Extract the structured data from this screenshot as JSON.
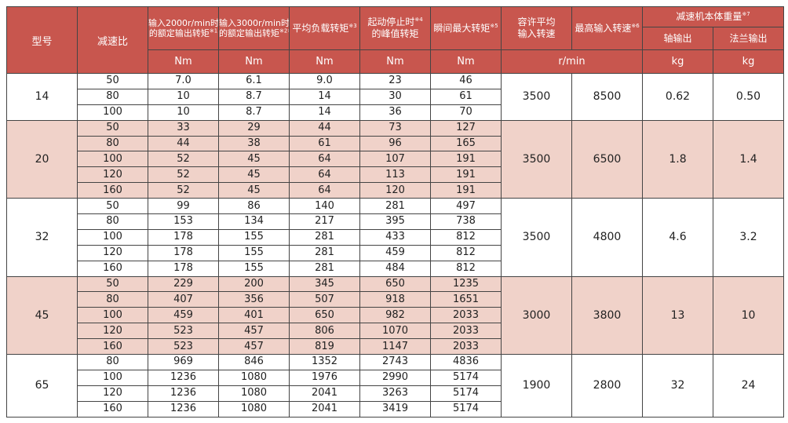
{
  "headers": {
    "model": "型号",
    "ratio": "减速比",
    "rated_2000_line1": "输入2000r/min时",
    "rated_2000_line2": "的额定输出转矩",
    "rated_2000_note": "※1",
    "rated_3000_line1": "输入3000r/min时",
    "rated_3000_line2": "的额定输出转矩",
    "rated_3000_note": "※2※6",
    "avg_load": "平均负载转矩",
    "avg_load_note": "※3",
    "peak_start_line1": "起动停止时",
    "peak_start_line2": "的峰值转矩",
    "peak_start_note": "※4",
    "momentary": "瞬间最大转矩",
    "momentary_note": "※5",
    "allow_speed_line1": "容许平均",
    "allow_speed_line2": "输入转速",
    "max_speed": "最高输入转速",
    "max_speed_note": "※6",
    "weight": "减速机本体重量",
    "weight_note": "※7",
    "shaft_out": "轴输出",
    "flange_out": "法兰输出"
  },
  "units": {
    "rated_2000": "Nm",
    "rated_3000": "Nm",
    "avg_load": "Nm",
    "peak_start": "Nm",
    "momentary": "Nm",
    "speed": "r/min",
    "weight_shaft": "kg",
    "weight_flange": "kg"
  },
  "groups": [
    {
      "model": "14",
      "allow_speed": "3500",
      "max_speed": "8500",
      "weight_shaft": "0.62",
      "weight_flange": "0.50",
      "rows": [
        {
          "ratio": "50",
          "r2000": "7.0",
          "r3000": "6.1",
          "avg": "9.0",
          "peak": "23",
          "moment": "46"
        },
        {
          "ratio": "80",
          "r2000": "10",
          "r3000": "8.7",
          "avg": "14",
          "peak": "30",
          "moment": "61"
        },
        {
          "ratio": "100",
          "r2000": "10",
          "r3000": "8.7",
          "avg": "14",
          "peak": "36",
          "moment": "70"
        }
      ]
    },
    {
      "model": "20",
      "allow_speed": "3500",
      "max_speed": "6500",
      "weight_shaft": "1.8",
      "weight_flange": "1.4",
      "rows": [
        {
          "ratio": "50",
          "r2000": "33",
          "r3000": "29",
          "avg": "44",
          "peak": "73",
          "moment": "127"
        },
        {
          "ratio": "80",
          "r2000": "44",
          "r3000": "38",
          "avg": "61",
          "peak": "96",
          "moment": "165"
        },
        {
          "ratio": "100",
          "r2000": "52",
          "r3000": "45",
          "avg": "64",
          "peak": "107",
          "moment": "191"
        },
        {
          "ratio": "120",
          "r2000": "52",
          "r3000": "45",
          "avg": "64",
          "peak": "113",
          "moment": "191"
        },
        {
          "ratio": "160",
          "r2000": "52",
          "r3000": "45",
          "avg": "64",
          "peak": "120",
          "moment": "191"
        }
      ]
    },
    {
      "model": "32",
      "allow_speed": "3500",
      "max_speed": "4800",
      "weight_shaft": "4.6",
      "weight_flange": "3.2",
      "rows": [
        {
          "ratio": "50",
          "r2000": "99",
          "r3000": "86",
          "avg": "140",
          "peak": "281",
          "moment": "497"
        },
        {
          "ratio": "80",
          "r2000": "153",
          "r3000": "134",
          "avg": "217",
          "peak": "395",
          "moment": "738"
        },
        {
          "ratio": "100",
          "r2000": "178",
          "r3000": "155",
          "avg": "281",
          "peak": "433",
          "moment": "812"
        },
        {
          "ratio": "120",
          "r2000": "178",
          "r3000": "155",
          "avg": "281",
          "peak": "459",
          "moment": "812"
        },
        {
          "ratio": "160",
          "r2000": "178",
          "r3000": "155",
          "avg": "281",
          "peak": "484",
          "moment": "812"
        }
      ]
    },
    {
      "model": "45",
      "allow_speed": "3000",
      "max_speed": "3800",
      "weight_shaft": "13",
      "weight_flange": "10",
      "rows": [
        {
          "ratio": "50",
          "r2000": "229",
          "r3000": "200",
          "avg": "345",
          "peak": "650",
          "moment": "1235"
        },
        {
          "ratio": "80",
          "r2000": "407",
          "r3000": "356",
          "avg": "507",
          "peak": "918",
          "moment": "1651"
        },
        {
          "ratio": "100",
          "r2000": "459",
          "r3000": "401",
          "avg": "650",
          "peak": "982",
          "moment": "2033"
        },
        {
          "ratio": "120",
          "r2000": "523",
          "r3000": "457",
          "avg": "806",
          "peak": "1070",
          "moment": "2033"
        },
        {
          "ratio": "160",
          "r2000": "523",
          "r3000": "457",
          "avg": "819",
          "peak": "1147",
          "moment": "2033"
        }
      ]
    },
    {
      "model": "65",
      "allow_speed": "1900",
      "max_speed": "2800",
      "weight_shaft": "32",
      "weight_flange": "24",
      "rows": [
        {
          "ratio": "80",
          "r2000": "969",
          "r3000": "846",
          "avg": "1352",
          "peak": "2743",
          "moment": "4836"
        },
        {
          "ratio": "100",
          "r2000": "1236",
          "r3000": "1080",
          "avg": "1976",
          "peak": "2990",
          "moment": "5174"
        },
        {
          "ratio": "120",
          "r2000": "1236",
          "r3000": "1080",
          "avg": "2041",
          "peak": "3263",
          "moment": "5174"
        },
        {
          "ratio": "160",
          "r2000": "1236",
          "r3000": "1080",
          "avg": "2041",
          "peak": "3419",
          "moment": "5174"
        }
      ]
    }
  ],
  "colors": {
    "header_bg": "#c8564e",
    "header_text": "#ffffff",
    "shaded_row": "#f0d2c9",
    "plain_row": "#ffffff",
    "border": "#444444"
  }
}
